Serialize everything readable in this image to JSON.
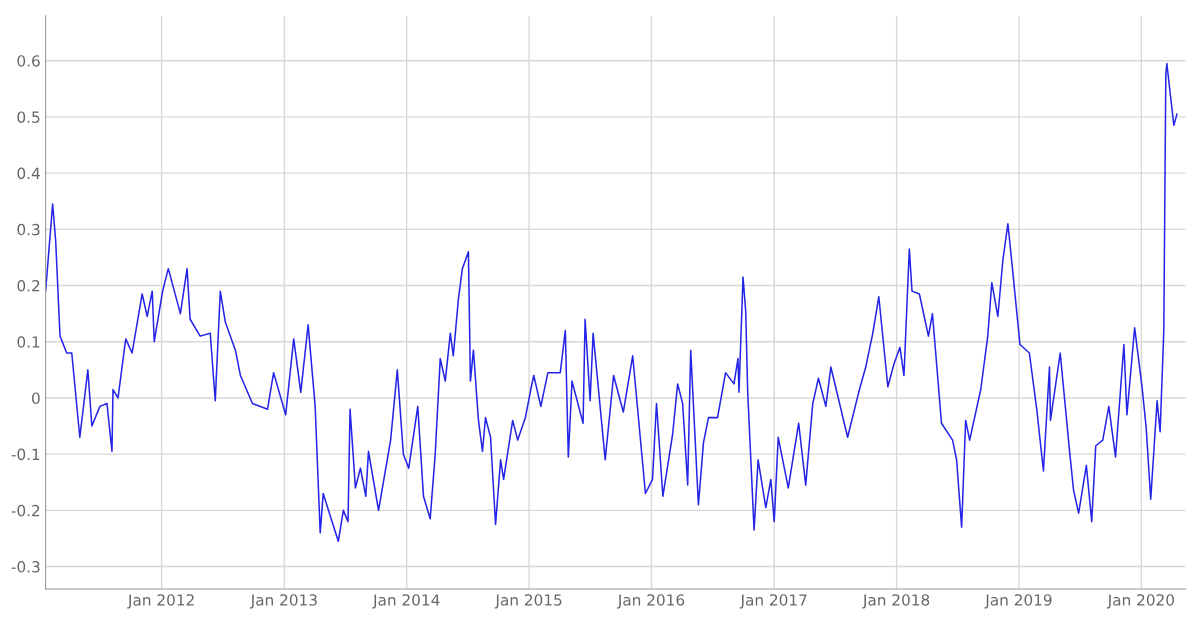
{
  "chart_data": {
    "type": "line",
    "xlim": [
      "2011-01-20",
      "2020-05-12"
    ],
    "ylim": [
      -0.34,
      0.68
    ],
    "xticks": [
      {
        "value": "2012-01-01",
        "label": "Jan 2012"
      },
      {
        "value": "2013-01-01",
        "label": "Jan 2013"
      },
      {
        "value": "2014-01-01",
        "label": "Jan 2014"
      },
      {
        "value": "2015-01-01",
        "label": "Jan 2015"
      },
      {
        "value": "2016-01-01",
        "label": "Jan 2016"
      },
      {
        "value": "2017-01-01",
        "label": "Jan 2017"
      },
      {
        "value": "2018-01-01",
        "label": "Jan 2018"
      },
      {
        "value": "2019-01-01",
        "label": "Jan 2019"
      },
      {
        "value": "2020-01-01",
        "label": "Jan 2020"
      }
    ],
    "yticks": [
      -0.3,
      -0.2,
      -0.1,
      0,
      0.1,
      0.2,
      0.3,
      0.4,
      0.5,
      0.6
    ],
    "grid": true,
    "legend": false,
    "series": [
      {
        "color": "#2424e8",
        "x": [
          "2011-01-20",
          "2011-02-10",
          "2011-02-19",
          "2011-03-04",
          "2011-03-24",
          "2011-04-08",
          "2011-05-02",
          "2011-05-26",
          "2011-06-07",
          "2011-07-01",
          "2011-07-22",
          "2011-08-06",
          "2011-08-09",
          "2011-08-24",
          "2011-09-16",
          "2011-10-05",
          "2011-11-04",
          "2011-11-19",
          "2011-12-04",
          "2011-12-10",
          "2012-01-04",
          "2012-01-21",
          "2012-02-26",
          "2012-03-17",
          "2012-03-26",
          "2012-04-25",
          "2012-05-25",
          "2012-06-09",
          "2012-06-24",
          "2012-07-09",
          "2012-08-08",
          "2012-08-23",
          "2012-09-28",
          "2012-11-12",
          "2012-11-30",
          "2013-01-05",
          "2013-01-29",
          "2013-02-19",
          "2013-03-13",
          "2013-04-03",
          "2013-04-18",
          "2013-04-27",
          "2013-05-18",
          "2013-06-11",
          "2013-06-26",
          "2013-07-10",
          "2013-07-16",
          "2013-08-01",
          "2013-08-16",
          "2013-09-01",
          "2013-09-09",
          "2013-10-09",
          "2013-11-14",
          "2013-12-04",
          "2013-12-22",
          "2014-01-07",
          "2014-02-03",
          "2014-02-20",
          "2014-03-12",
          "2014-03-27",
          "2014-04-11",
          "2014-04-26",
          "2014-05-11",
          "2014-05-20",
          "2014-06-04",
          "2014-06-16",
          "2014-07-04",
          "2014-07-10",
          "2014-07-19",
          "2014-08-03",
          "2014-08-15",
          "2014-08-24",
          "2014-09-08",
          "2014-09-23",
          "2014-10-08",
          "2014-10-17",
          "2014-11-13",
          "2014-11-28",
          "2014-12-21",
          "2015-01-06",
          "2015-01-15",
          "2015-02-05",
          "2015-02-26",
          "2015-04-04",
          "2015-04-19",
          "2015-04-28",
          "2015-05-09",
          "2015-06-11",
          "2015-06-17",
          "2015-07-02",
          "2015-07-11",
          "2015-08-16",
          "2015-09-10",
          "2015-10-09",
          "2015-11-06",
          "2015-12-14",
          "2016-01-04",
          "2016-01-16",
          "2016-02-04",
          "2016-03-04",
          "2016-03-19",
          "2016-04-03",
          "2016-04-18",
          "2016-04-27",
          "2016-05-20",
          "2016-06-04",
          "2016-06-19",
          "2016-07-16",
          "2016-08-09",
          "2016-09-03",
          "2016-09-15",
          "2016-09-18",
          "2016-09-30",
          "2016-10-08",
          "2016-10-14",
          "2016-11-02",
          "2016-11-14",
          "2016-12-07",
          "2016-12-22",
          "2017-01-01",
          "2017-01-13",
          "2017-02-12",
          "2017-03-15",
          "2017-04-05",
          "2017-04-26",
          "2017-05-13",
          "2017-06-04",
          "2017-06-19",
          "2017-08-08",
          "2017-09-10",
          "2017-10-01",
          "2017-10-22",
          "2017-11-09",
          "2017-12-06",
          "2017-12-24",
          "2018-01-11",
          "2018-01-23",
          "2018-02-08",
          "2018-02-16",
          "2018-03-10",
          "2018-04-06",
          "2018-04-18",
          "2018-05-15",
          "2018-06-17",
          "2018-06-29",
          "2018-07-14",
          "2018-07-26",
          "2018-08-07",
          "2018-09-09",
          "2018-09-30",
          "2018-10-12",
          "2018-10-30",
          "2018-11-14",
          "2018-11-29",
          "2018-12-11",
          "2019-01-04",
          "2019-02-01",
          "2019-02-23",
          "2019-03-15",
          "2019-04-02",
          "2019-04-05",
          "2019-05-04",
          "2019-06-01",
          "2019-06-13",
          "2019-06-28",
          "2019-07-21",
          "2019-08-06",
          "2019-08-18",
          "2019-09-08",
          "2019-09-26",
          "2019-10-16",
          "2019-11-10",
          "2019-11-19",
          "2019-12-12",
          "2020-01-03",
          "2020-01-15",
          "2020-01-29",
          "2020-02-17",
          "2020-02-26",
          "2020-03-08",
          "2020-03-14",
          "2020-03-17",
          "2020-04-07",
          "2020-04-16"
        ],
        "values": [
          0.19,
          0.345,
          0.28,
          0.11,
          0.08,
          0.08,
          -0.07,
          0.05,
          -0.05,
          -0.015,
          -0.01,
          -0.095,
          0.015,
          0.0,
          0.105,
          0.08,
          0.185,
          0.145,
          0.19,
          0.1,
          0.19,
          0.23,
          0.15,
          0.23,
          0.14,
          0.11,
          0.115,
          -0.005,
          0.19,
          0.135,
          0.085,
          0.04,
          -0.01,
          -0.02,
          0.045,
          -0.03,
          0.105,
          0.01,
          0.13,
          -0.015,
          -0.24,
          -0.17,
          -0.21,
          -0.255,
          -0.2,
          -0.22,
          -0.02,
          -0.16,
          -0.125,
          -0.175,
          -0.095,
          -0.2,
          -0.075,
          0.05,
          -0.1,
          -0.125,
          -0.015,
          -0.175,
          -0.215,
          -0.1,
          0.07,
          0.03,
          0.115,
          0.075,
          0.175,
          0.23,
          0.26,
          0.03,
          0.085,
          -0.04,
          -0.095,
          -0.035,
          -0.07,
          -0.225,
          -0.11,
          -0.145,
          -0.04,
          -0.075,
          -0.035,
          0.015,
          0.04,
          -0.015,
          0.045,
          0.045,
          0.12,
          -0.105,
          0.03,
          -0.045,
          0.14,
          -0.005,
          0.115,
          -0.11,
          0.04,
          -0.025,
          0.075,
          -0.17,
          -0.145,
          -0.01,
          -0.175,
          -0.065,
          0.025,
          -0.01,
          -0.155,
          0.085,
          -0.19,
          -0.08,
          -0.035,
          -0.035,
          0.045,
          0.025,
          0.07,
          0.01,
          0.215,
          0.155,
          0.01,
          -0.235,
          -0.11,
          -0.195,
          -0.145,
          -0.22,
          -0.07,
          -0.16,
          -0.045,
          -0.155,
          -0.01,
          0.035,
          -0.015,
          0.055,
          -0.07,
          0.01,
          0.055,
          0.115,
          0.18,
          0.02,
          0.06,
          0.09,
          0.04,
          0.265,
          0.19,
          0.185,
          0.11,
          0.15,
          -0.045,
          -0.075,
          -0.11,
          -0.23,
          -0.04,
          -0.075,
          0.015,
          0.11,
          0.205,
          0.145,
          0.245,
          0.31,
          0.24,
          0.095,
          0.08,
          -0.02,
          -0.13,
          0.055,
          -0.04,
          0.08,
          -0.095,
          -0.165,
          -0.205,
          -0.12,
          -0.22,
          -0.085,
          -0.075,
          -0.015,
          -0.105,
          0.095,
          -0.03,
          0.125,
          0.02,
          -0.05,
          -0.18,
          -0.005,
          -0.06,
          0.12,
          0.575,
          0.595,
          0.485,
          0.505
        ]
      }
    ]
  }
}
